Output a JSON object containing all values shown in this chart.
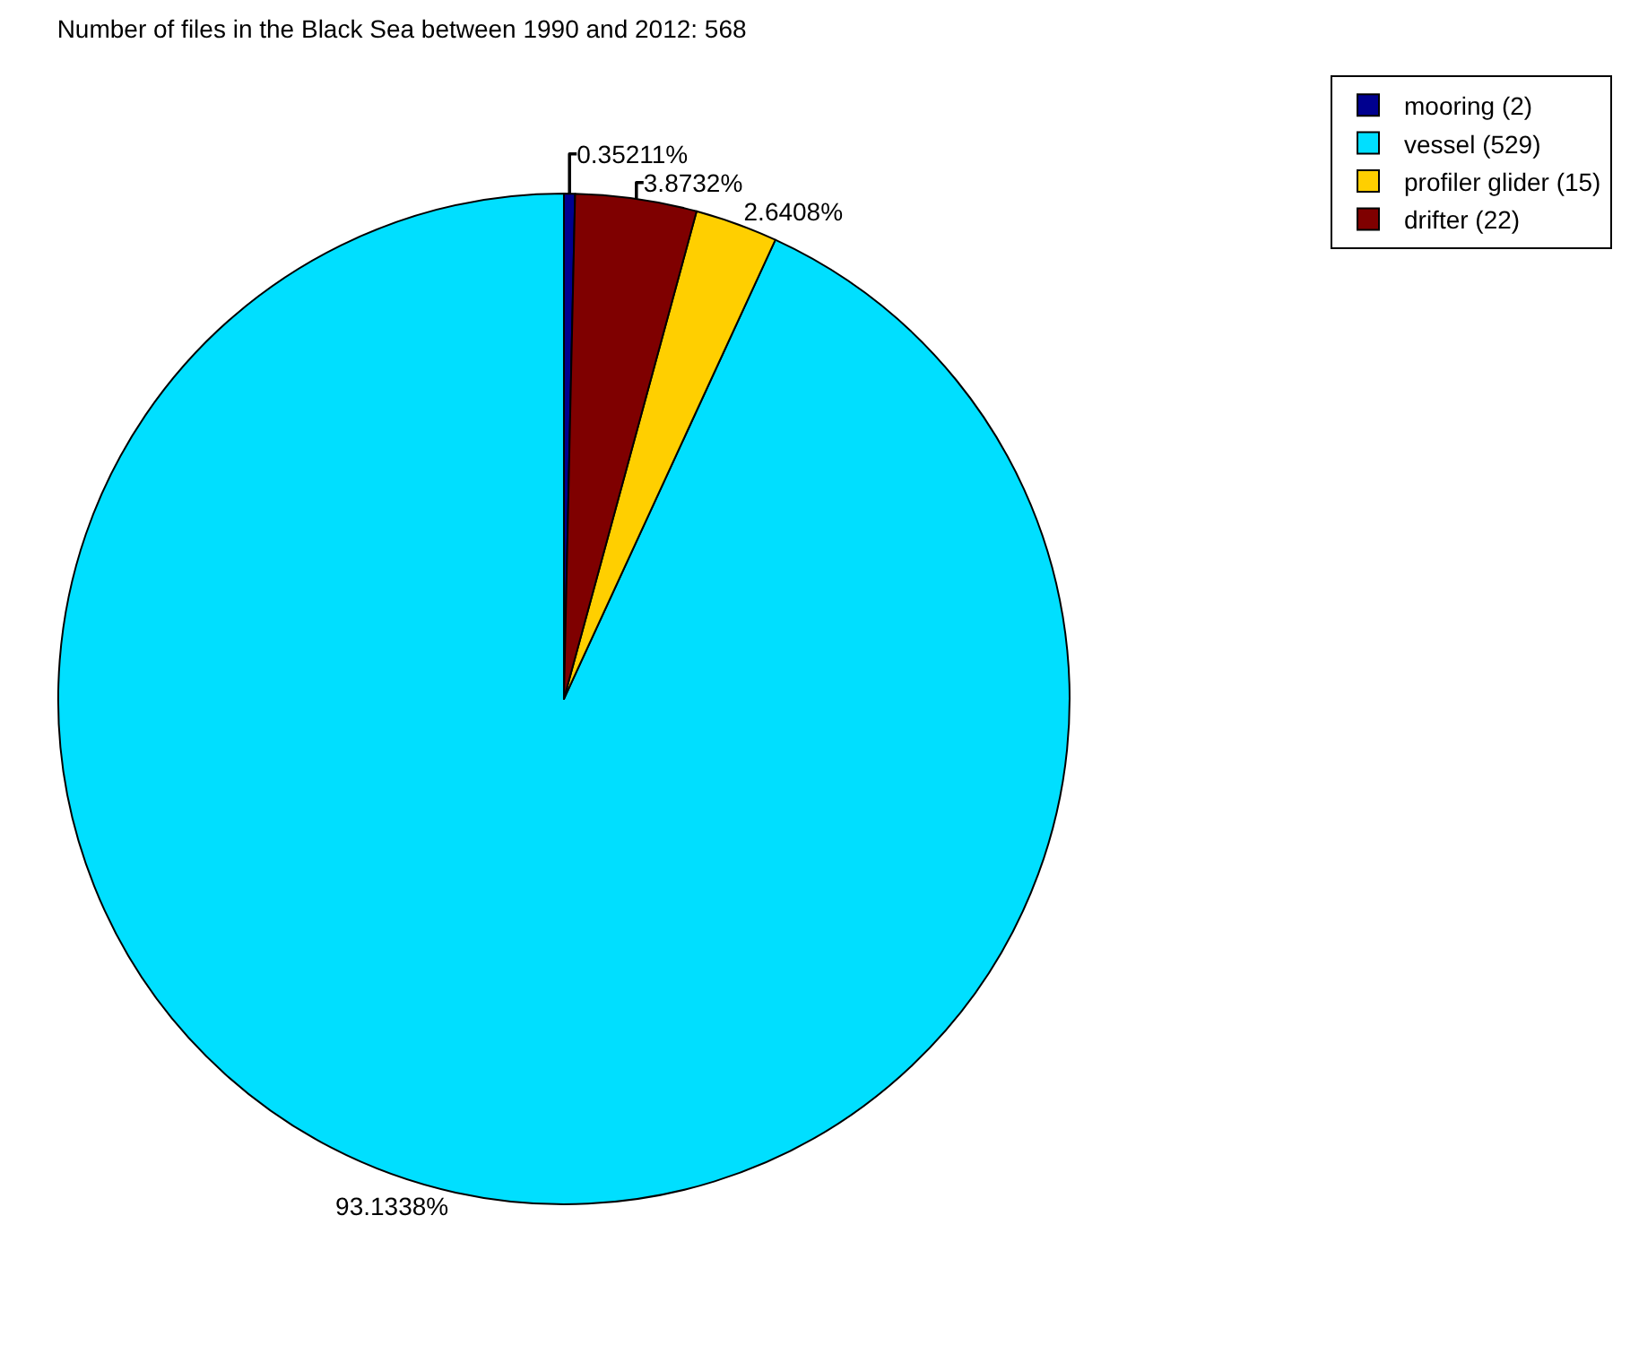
{
  "chart_data": {
    "type": "pie",
    "title": "Number of files in the Black Sea between 1990 and 2012: 568",
    "categories": [
      "mooring (2)",
      "vessel (529)",
      "profiler glider (15)",
      "drifter (22)"
    ],
    "values": [
      0.35211,
      93.1338,
      2.6408,
      3.8732
    ],
    "colors": [
      "#00008f",
      "#00dfff",
      "#ffcf00",
      "#7f0000"
    ],
    "value_labels": [
      "0.35211%",
      "93.1338%",
      "2.6408%",
      "3.8732%"
    ],
    "legend": "top right"
  }
}
